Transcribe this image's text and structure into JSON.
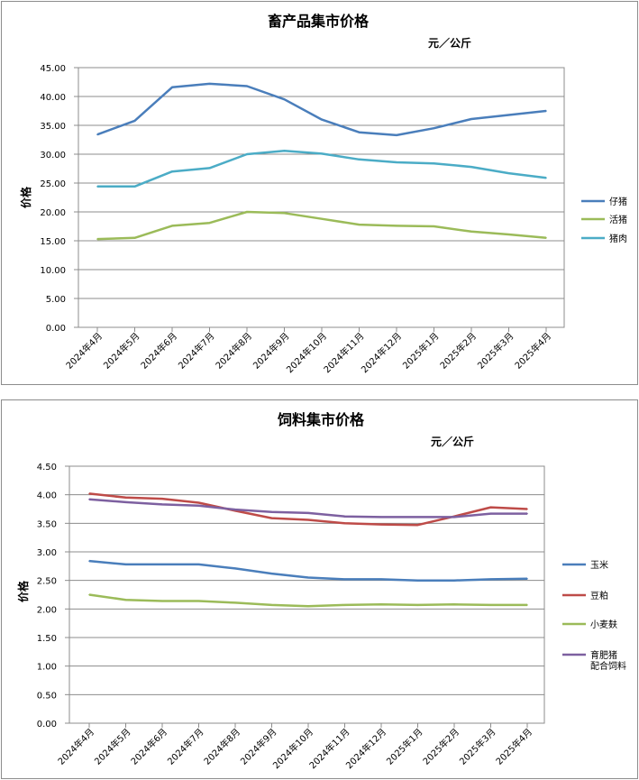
{
  "chart_data": [
    {
      "type": "line",
      "title": "畜产品集市价格",
      "unit": "元／公斤",
      "ylabel": "价格",
      "xlabel": "",
      "ylim": [
        0,
        45
      ],
      "y_ticks": [
        "0.00",
        "5.00",
        "10.00",
        "15.00",
        "20.00",
        "25.00",
        "30.00",
        "35.00",
        "40.00",
        "45.00"
      ],
      "grid": true,
      "legend_position": "right",
      "categories": [
        "2024年4月",
        "2024年5月",
        "2024年6月",
        "2024年7月",
        "2024年8月",
        "2024年9月",
        "2024年10月",
        "2024年11月",
        "2024年12月",
        "2025年1月",
        "2025年2月",
        "2025年3月",
        "2025年4月"
      ],
      "series": [
        {
          "name": "仔猪",
          "color": "#4a7ebb",
          "values": [
            33.4,
            35.8,
            41.6,
            42.2,
            41.8,
            39.5,
            36.0,
            33.8,
            33.3,
            34.5,
            36.1,
            36.8,
            37.5
          ]
        },
        {
          "name": "活猪",
          "color": "#9bbb59",
          "values": [
            15.3,
            15.5,
            17.6,
            18.1,
            20.0,
            19.8,
            18.8,
            17.8,
            17.6,
            17.5,
            16.6,
            16.1,
            15.5
          ]
        },
        {
          "name": "猪肉",
          "color": "#4bacc6",
          "values": [
            24.4,
            24.4,
            27.0,
            27.6,
            30.0,
            30.6,
            30.1,
            29.1,
            28.6,
            28.4,
            27.8,
            26.7,
            25.9
          ]
        }
      ]
    },
    {
      "type": "line",
      "title": "饲料集市价格",
      "unit": "元／公斤",
      "ylabel": "价格",
      "xlabel": "",
      "ylim": [
        0,
        4.5
      ],
      "y_ticks": [
        "0.00",
        "0.50",
        "1.00",
        "1.50",
        "2.00",
        "2.50",
        "3.00",
        "3.50",
        "4.00",
        "4.50"
      ],
      "grid": true,
      "legend_position": "right",
      "categories": [
        "2024年4月",
        "2024年5月",
        "2024年6月",
        "2024年7月",
        "2024年8月",
        "2024年9月",
        "2024年10月",
        "2024年11月",
        "2024年12月",
        "2025年1月",
        "2025年2月",
        "2025年3月",
        "2025年4月"
      ],
      "series": [
        {
          "name": "玉米",
          "color": "#4a7ebb",
          "values": [
            2.84,
            2.78,
            2.78,
            2.78,
            2.71,
            2.62,
            2.55,
            2.52,
            2.52,
            2.5,
            2.5,
            2.52,
            2.53
          ]
        },
        {
          "name": "豆粕",
          "color": "#be4b48",
          "values": [
            4.02,
            3.95,
            3.93,
            3.86,
            3.72,
            3.59,
            3.56,
            3.5,
            3.48,
            3.47,
            3.62,
            3.78,
            3.75
          ]
        },
        {
          "name": "小麦麸",
          "color": "#9bbb59",
          "values": [
            2.25,
            2.16,
            2.14,
            2.14,
            2.11,
            2.07,
            2.05,
            2.07,
            2.08,
            2.07,
            2.08,
            2.07,
            2.07
          ]
        },
        {
          "name": [
            "育肥猪",
            "配合饲料"
          ],
          "color": "#7d60a0",
          "values": [
            3.92,
            3.87,
            3.83,
            3.81,
            3.74,
            3.7,
            3.68,
            3.62,
            3.61,
            3.61,
            3.61,
            3.67,
            3.67
          ]
        }
      ]
    }
  ]
}
